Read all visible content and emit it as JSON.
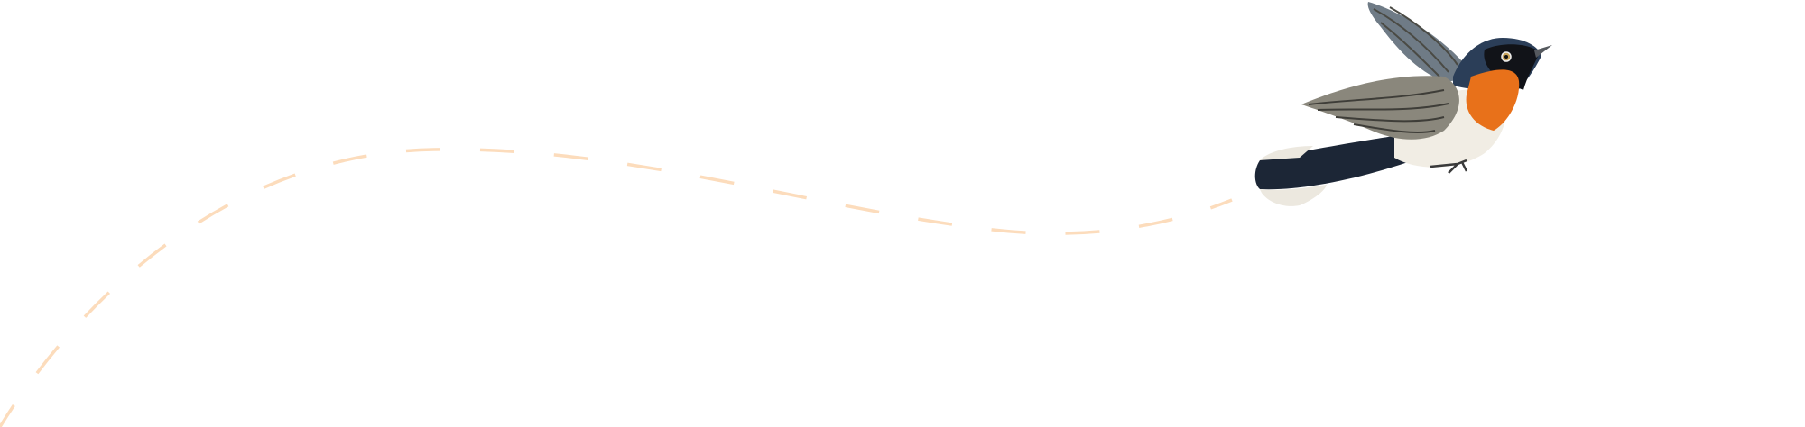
{
  "illustration": {
    "subject": "bird-illustration",
    "path_style": "dashed",
    "colors": {
      "background": "#ffffff",
      "flight_path": "#fcdcbc",
      "bird_head": "#2b3e58",
      "bird_throat": "#e8711a",
      "bird_belly": "#f1ede4",
      "bird_wing": "#7d7a70",
      "bird_tail": "#1c2636"
    }
  }
}
